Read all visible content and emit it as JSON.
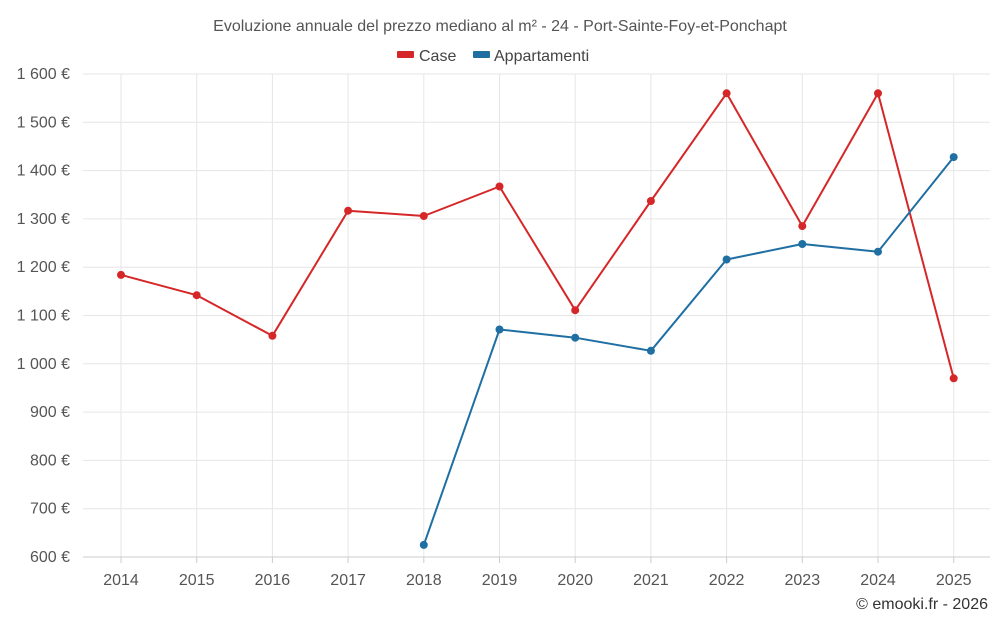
{
  "chart_data": {
    "type": "line",
    "title": "Evoluzione annuale del prezzo mediano al m² - 24 - Port-Sainte-Foy-et-Ponchapt",
    "categories": [
      "2014",
      "2015",
      "2016",
      "2017",
      "2018",
      "2019",
      "2020",
      "2021",
      "2022",
      "2023",
      "2024",
      "2025"
    ],
    "series": [
      {
        "name": "Case",
        "color": "#d62728",
        "values": [
          1184,
          1142,
          1058,
          1317,
          1306,
          1367,
          1111,
          1337,
          1560,
          1285,
          1560,
          970
        ]
      },
      {
        "name": "Appartamenti",
        "color": "#1f6fa3",
        "values": [
          null,
          null,
          null,
          null,
          625,
          1071,
          1054,
          1027,
          1216,
          1248,
          1232,
          1428
        ]
      }
    ],
    "ylim": [
      600,
      1600
    ],
    "yticks": [
      600,
      700,
      800,
      900,
      1000,
      1100,
      1200,
      1300,
      1400,
      1500,
      1600
    ],
    "ytick_labels": [
      "600 €",
      "700 €",
      "800 €",
      "900 €",
      "1 000 €",
      "1 100 €",
      "1 200 €",
      "1 300 €",
      "1 400 €",
      "1 500 €",
      "1 600 €"
    ],
    "xlabel": "",
    "ylabel": "",
    "grid": true,
    "legend_position": "top-center"
  },
  "credit": "© emooki.fr - 2026"
}
